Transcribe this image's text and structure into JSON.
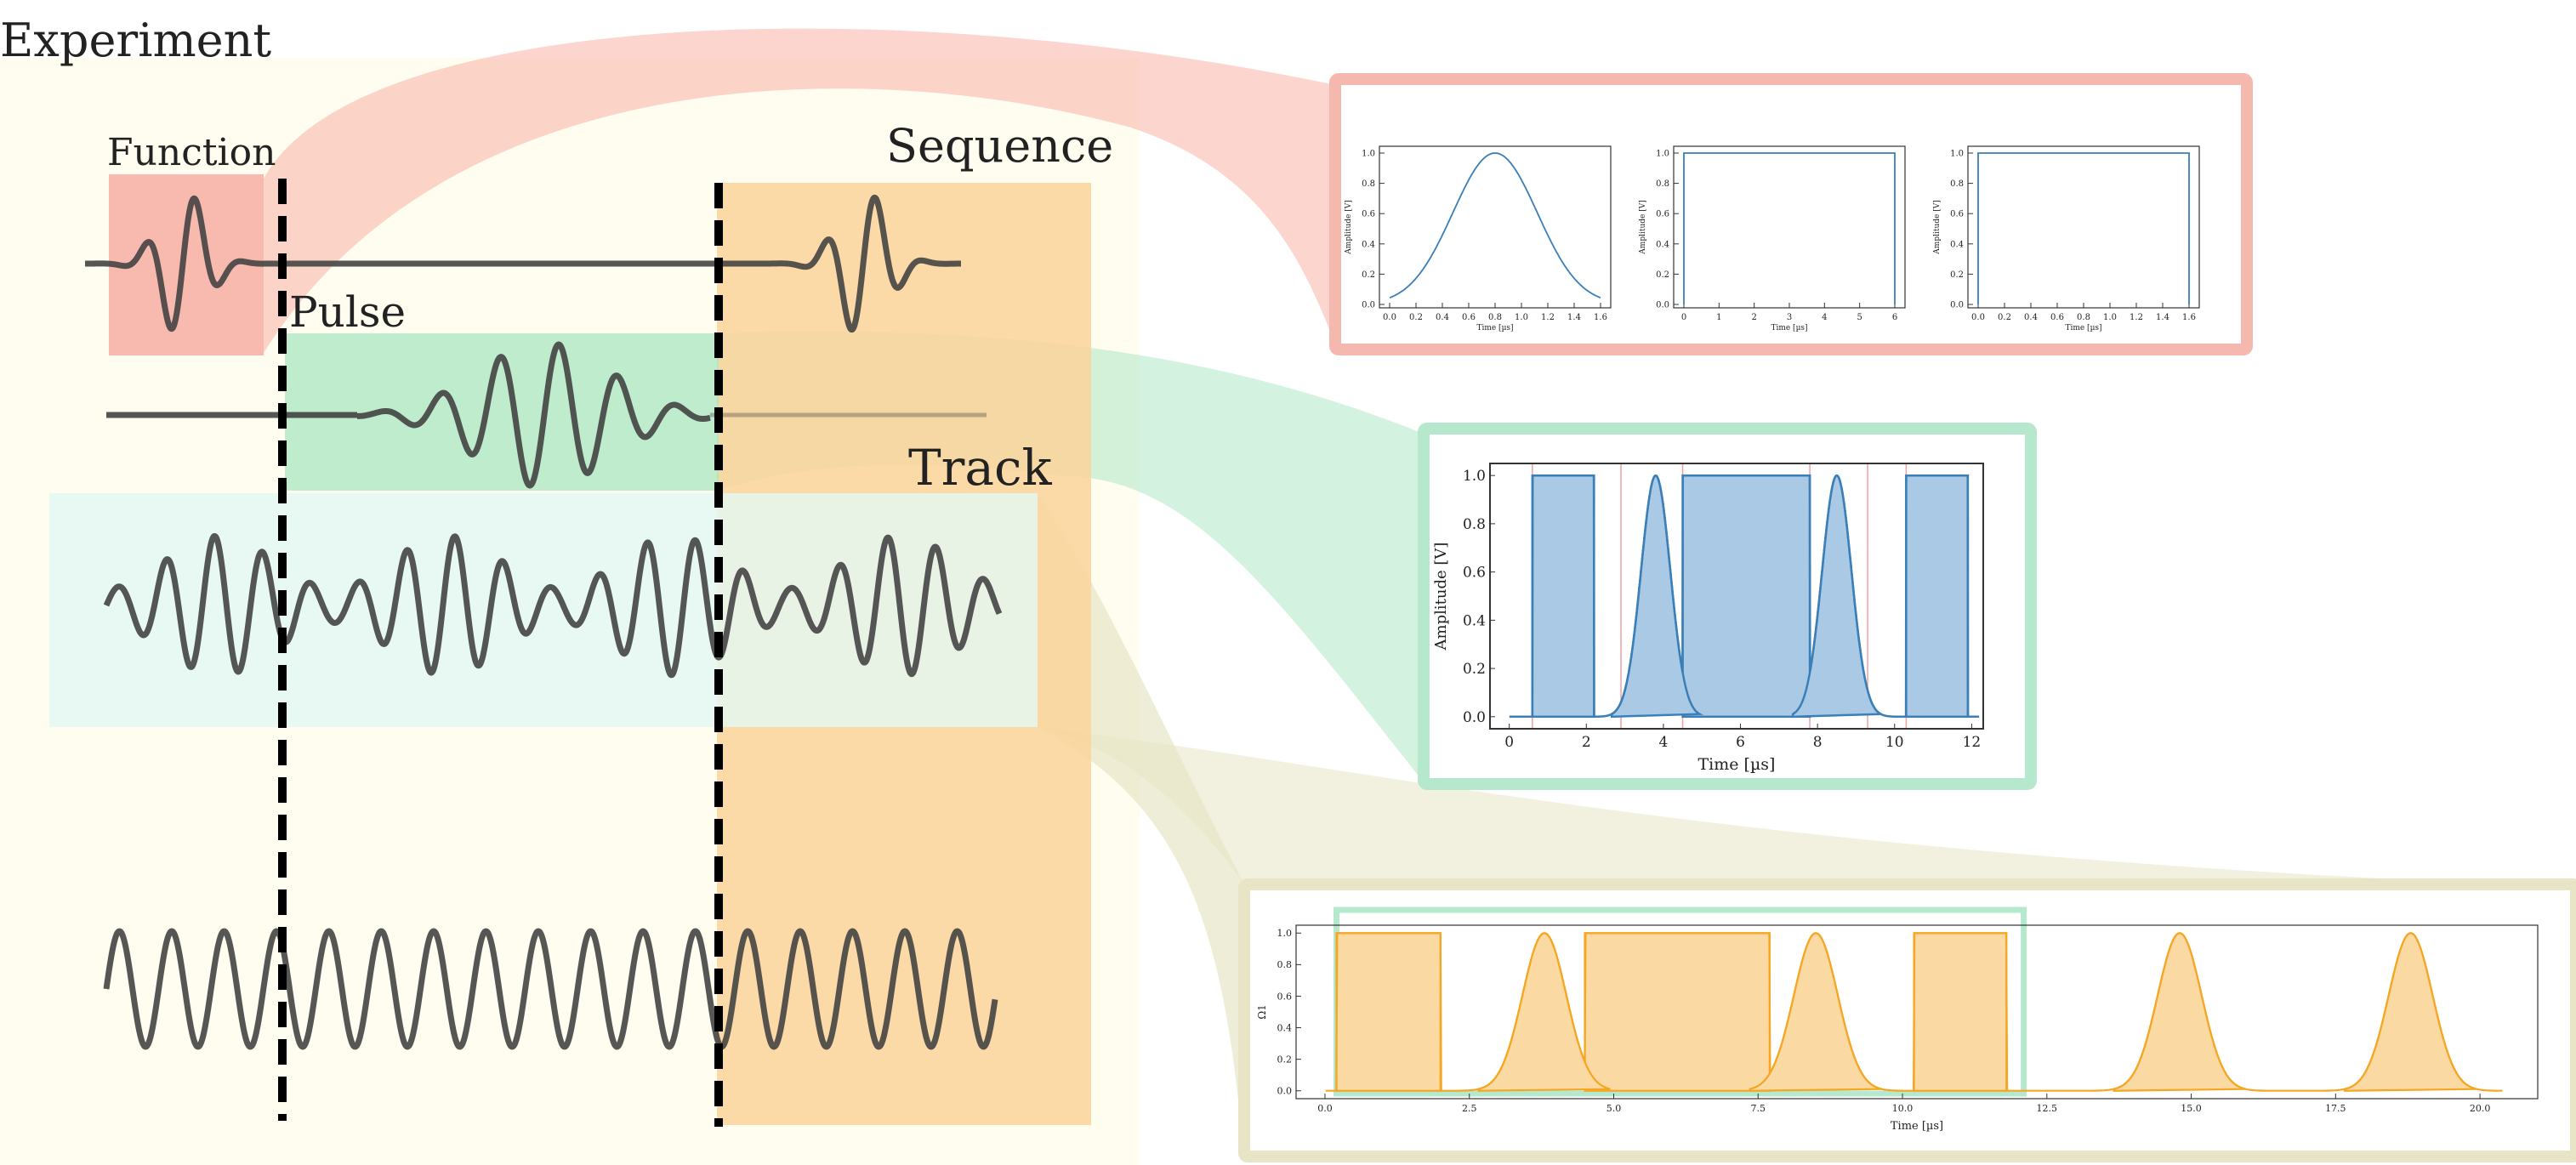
{
  "labels": {
    "experiment": "Experiment",
    "function": "Function",
    "pulse": "Pulse",
    "sequence": "Sequence",
    "track": "Track"
  },
  "colors": {
    "experiment_bg": "#fffdf0",
    "function": "#f7b3a6",
    "pulse": "#a8e6c1",
    "sequence": "#fcd49a",
    "track": "#e2f7f5",
    "track_link": "#e7e5c6",
    "wave": "#444444",
    "plot_blue": "#3a7fb8",
    "plot_blue_fill": "#a9c9e4",
    "plot_orange": "#f5a623",
    "plot_orange_fill": "#fbd9a3",
    "marker_red": "#f2a0a0"
  },
  "function_panel": {
    "plots": [
      {
        "type": "gaussian",
        "ylabel": "Amplitude [V]",
        "xlabel": "Time [µs]",
        "xticks": [
          "0.0",
          "0.2",
          "0.4",
          "0.6",
          "0.8",
          "1.0",
          "1.2",
          "1.4",
          "1.6"
        ],
        "yticks": [
          "0.0",
          "0.2",
          "0.4",
          "0.6",
          "0.8",
          "1.0"
        ]
      },
      {
        "type": "square",
        "ylabel": "Amplitude [V]",
        "xlabel": "Time [µs]",
        "xticks": [
          "0",
          "1",
          "2",
          "3",
          "4",
          "5",
          "6"
        ],
        "yticks": [
          "0.0",
          "0.2",
          "0.4",
          "0.6",
          "0.8",
          "1.0"
        ]
      },
      {
        "type": "square",
        "ylabel": "Amplitude [V]",
        "xlabel": "Time [µs]",
        "xticks": [
          "0.0",
          "0.2",
          "0.4",
          "0.6",
          "0.8",
          "1.0",
          "1.2",
          "1.4",
          "1.6"
        ],
        "yticks": [
          "0.0",
          "0.2",
          "0.4",
          "0.6",
          "0.8",
          "1.0"
        ]
      }
    ]
  },
  "chart_data": [
    {
      "type": "area",
      "ylabel": "Amplitude [V]",
      "xlabel": "Time [µs]",
      "xlim": [
        -0.5,
        12.3
      ],
      "ylim": [
        -0.05,
        1.05
      ],
      "xticks": [
        "0",
        "2",
        "4",
        "6",
        "8",
        "10",
        "12"
      ],
      "yticks": [
        "0.0",
        "0.2",
        "0.4",
        "0.6",
        "0.8",
        "1.0"
      ],
      "squares": [
        [
          0.6,
          2.2
        ],
        [
          4.5,
          7.8
        ],
        [
          10.3,
          11.9
        ]
      ],
      "gaussians": [
        {
          "center": 3.8,
          "sigma": 0.38
        },
        {
          "center": 8.5,
          "sigma": 0.38
        }
      ],
      "markers": [
        0.6,
        2.9,
        4.5,
        7.8,
        9.3,
        10.3
      ]
    },
    {
      "type": "area",
      "ylabel": "Ω1",
      "xlabel": "Time [µs]",
      "xlim": [
        -0.5,
        21.0
      ],
      "ylim": [
        -0.05,
        1.05
      ],
      "xticks": [
        "0.0",
        "2.5",
        "5.0",
        "7.5",
        "10.0",
        "12.5",
        "15.0",
        "17.5",
        "20.0"
      ],
      "yticks": [
        "0.0",
        "0.2",
        "0.4",
        "0.6",
        "0.8",
        "1.0"
      ],
      "squares": [
        [
          0.2,
          2.0
        ],
        [
          4.5,
          7.7
        ],
        [
          10.2,
          11.8
        ]
      ],
      "gaussians": [
        {
          "center": 3.8,
          "sigma": 0.38
        },
        {
          "center": 8.5,
          "sigma": 0.38
        },
        {
          "center": 14.8,
          "sigma": 0.38
        },
        {
          "center": 18.8,
          "sigma": 0.38
        }
      ],
      "highlight": [
        0.2,
        12.1
      ]
    }
  ]
}
